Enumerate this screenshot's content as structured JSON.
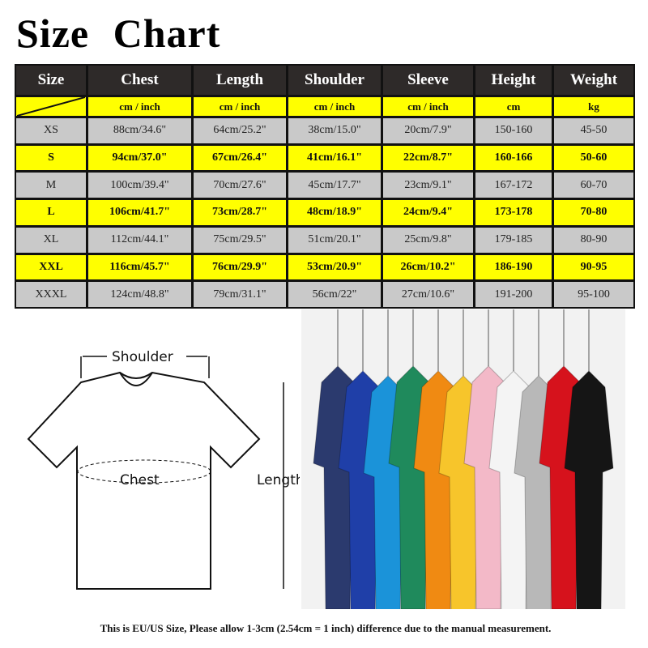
{
  "title": "Size  Chart",
  "headers": [
    "Size",
    "Chest",
    "Length",
    "Shoulder",
    "Sleeve",
    "Height",
    "Weight"
  ],
  "units": [
    "",
    "cm / inch",
    "cm / inch",
    "cm / inch",
    "cm / inch",
    "cm",
    "kg"
  ],
  "rows": [
    [
      "XS",
      "88cm/34.6\"",
      "64cm/25.2\"",
      "38cm/15.0\"",
      "20cm/7.9\"",
      "150-160",
      "45-50"
    ],
    [
      "S",
      "94cm/37.0\"",
      "67cm/26.4\"",
      "41cm/16.1\"",
      "22cm/8.7\"",
      "160-166",
      "50-60"
    ],
    [
      "M",
      "100cm/39.4\"",
      "70cm/27.6\"",
      "45cm/17.7\"",
      "23cm/9.1\"",
      "167-172",
      "60-70"
    ],
    [
      "L",
      "106cm/41.7\"",
      "73cm/28.7\"",
      "48cm/18.9\"",
      "24cm/9.4\"",
      "173-178",
      "70-80"
    ],
    [
      "XL",
      "112cm/44.1\"",
      "75cm/29.5\"",
      "51cm/20.1\"",
      "25cm/9.8\"",
      "179-185",
      "80-90"
    ],
    [
      "XXL",
      "116cm/45.7\"",
      "76cm/29.9\"",
      "53cm/20.9\"",
      "26cm/10.2\"",
      "186-190",
      "90-95"
    ],
    [
      "XXXL",
      "124cm/48.8\"",
      "79cm/31.1\"",
      "56cm/22\"",
      "27cm/10.6\"",
      "191-200",
      "95-100"
    ]
  ],
  "diagram": {
    "shoulder": "Shoulder",
    "chest": "Chest",
    "length": "Length"
  },
  "shirt_colors": [
    "#2b3a6e",
    "#1f3fa8",
    "#1b93d9",
    "#1f8a5c",
    "#f08a12",
    "#f7c52b",
    "#f3b9c8",
    "#f4f4f4",
    "#b8b8b8",
    "#d6121c",
    "#151515"
  ],
  "caption": "This is EU/US Size, Please allow 1-3cm (2.54cm = 1 inch) difference due to the manual measurement.",
  "colors": {
    "header_bg": "#2e2a29",
    "highlight": "#ffff00",
    "row_gray": "#c9c9c9"
  }
}
